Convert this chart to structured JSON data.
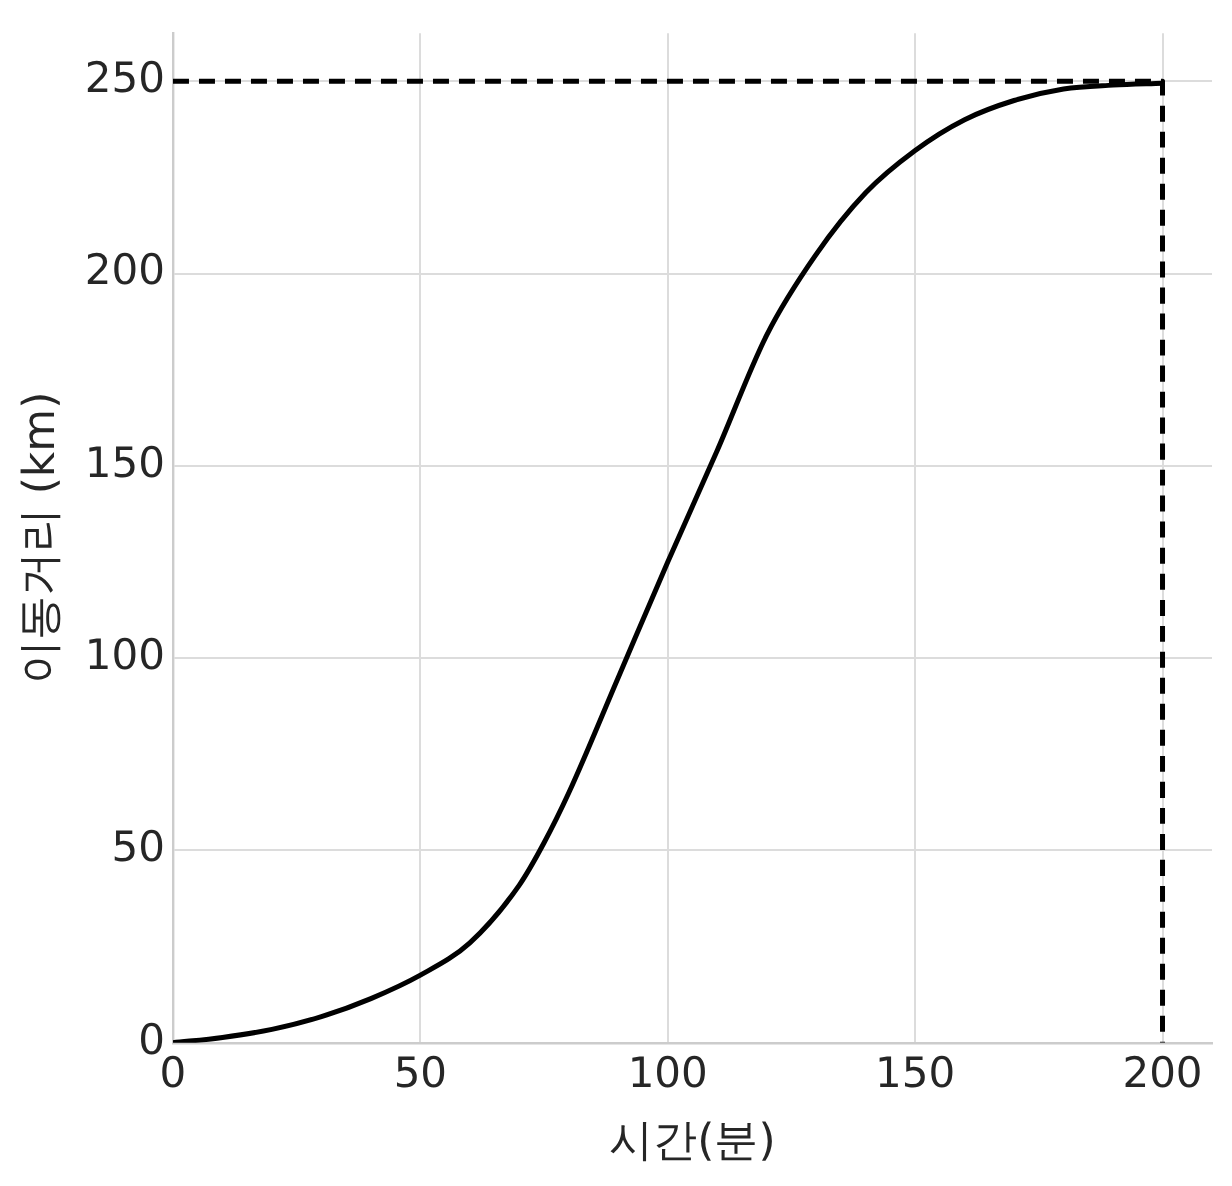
{
  "chart_data": {
    "type": "line",
    "xlabel": "시간(분)",
    "ylabel": "이동거리 (km)",
    "xlim": [
      0,
      210
    ],
    "ylim": [
      0,
      262.5
    ],
    "xticks": [
      0,
      50,
      100,
      150,
      200
    ],
    "yticks": [
      0,
      50,
      100,
      150,
      200,
      250
    ],
    "grid": true,
    "legend": false,
    "marker": "none",
    "series": [
      {
        "color": "#000000",
        "x": [
          0,
          10,
          20,
          30,
          40,
          50,
          60,
          70,
          75,
          80,
          90,
          100,
          110,
          120,
          130,
          140,
          150,
          160,
          170,
          180,
          190,
          200
        ],
        "values": [
          0,
          1.4,
          3.5,
          6.8,
          11.5,
          17.6,
          26,
          41,
          52,
          65,
          95,
          125,
          154,
          184,
          205,
          221,
          232,
          240,
          245,
          248,
          249,
          249.5
        ]
      },
      {
        "color": "#000000",
        "line_style": "dashed",
        "x": [
          0,
          200,
          200
        ],
        "values": [
          250,
          250,
          0
        ]
      }
    ]
  }
}
